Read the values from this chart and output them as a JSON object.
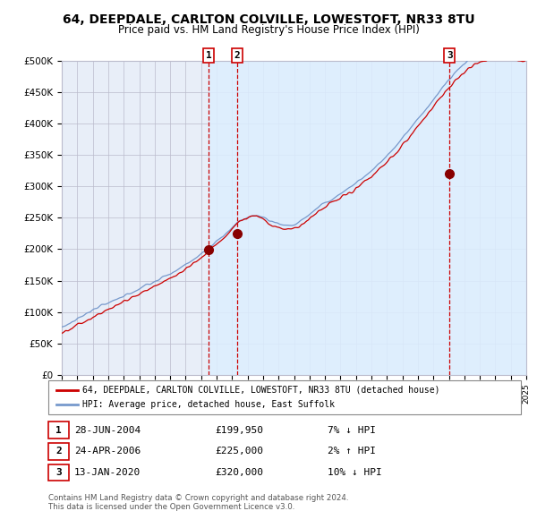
{
  "title1": "64, DEEPDALE, CARLTON COLVILLE, LOWESTOFT, NR33 8TU",
  "title2": "Price paid vs. HM Land Registry's House Price Index (HPI)",
  "ytick_labels": [
    "£0",
    "£50K",
    "£100K",
    "£150K",
    "£200K",
    "£250K",
    "£300K",
    "£350K",
    "£400K",
    "£450K",
    "£500K"
  ],
  "ytick_vals": [
    0,
    50,
    100,
    150,
    200,
    250,
    300,
    350,
    400,
    450,
    500
  ],
  "x_start_year": 1995,
  "x_end_year": 2025,
  "sale_dates": [
    2004.49,
    2006.31,
    2020.04
  ],
  "sale_prices_k": [
    199.95,
    225.0,
    320.0
  ],
  "sale_labels": [
    "1",
    "2",
    "3"
  ],
  "legend_red": "64, DEEPDALE, CARLTON COLVILLE, LOWESTOFT, NR33 8TU (detached house)",
  "legend_blue": "HPI: Average price, detached house, East Suffolk",
  "table_rows": [
    {
      "num": "1",
      "date": "28-JUN-2004",
      "price": "£199,950",
      "hpi": "7% ↓ HPI"
    },
    {
      "num": "2",
      "date": "24-APR-2006",
      "price": "£225,000",
      "hpi": "2% ↑ HPI"
    },
    {
      "num": "3",
      "date": "13-JAN-2020",
      "price": "£320,000",
      "hpi": "10% ↓ HPI"
    }
  ],
  "footnote1": "Contains HM Land Registry data © Crown copyright and database right 2024.",
  "footnote2": "This data is licensed under the Open Government Licence v3.0.",
  "hpi_color": "#7799cc",
  "sold_color": "#cc0000",
  "vline_color": "#cc0000",
  "shade_color": "#ddeeff",
  "bg_color": "#e8eef8",
  "grid_color": "#bbbbcc",
  "dot_color": "#880000"
}
